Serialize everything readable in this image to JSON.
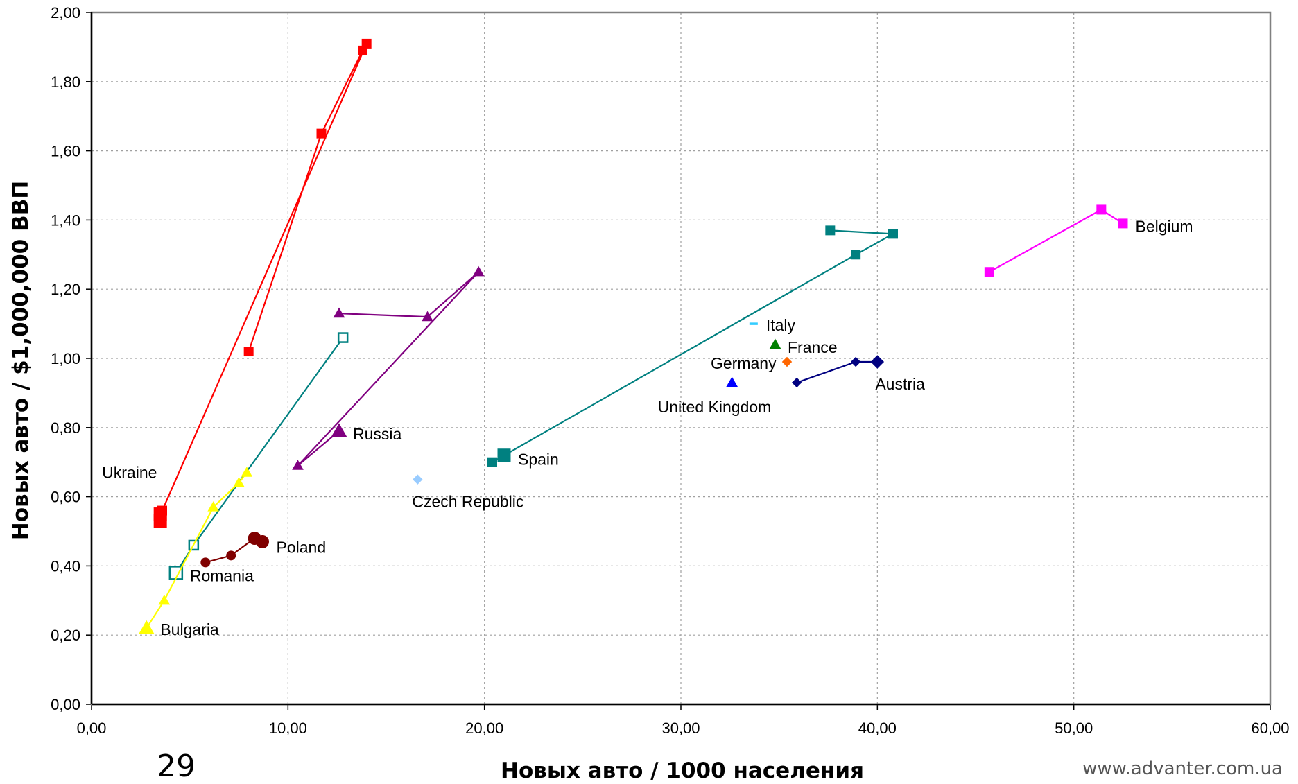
{
  "chart_data": {
    "type": "scatter",
    "title": "",
    "xlabel": "Новых авто / 1000 населения",
    "ylabel": "Новых авто / $1,000,000 ВВП",
    "xlim": [
      0,
      60
    ],
    "ylim": [
      0,
      2
    ],
    "x_ticks": [
      "0,00",
      "10,00",
      "20,00",
      "30,00",
      "40,00",
      "50,00",
      "60,00"
    ],
    "y_ticks": [
      "0,00",
      "0,20",
      "0,40",
      "0,60",
      "0,80",
      "1,00",
      "1,20",
      "1,40",
      "1,60",
      "1,80",
      "2,00"
    ],
    "grid": true,
    "series": [
      {
        "name": "Ukraine",
        "color": "#ff0000",
        "marker": "square",
        "points": [
          [
            3.5,
            0.53
          ],
          [
            3.5,
            0.55
          ],
          [
            3.6,
            0.56
          ],
          [
            14.0,
            1.91
          ],
          [
            13.8,
            1.89
          ],
          [
            11.7,
            1.65
          ],
          [
            8.0,
            1.02
          ]
        ]
      },
      {
        "name": "Romania",
        "color": "#008080",
        "marker": "open-square",
        "points": [
          [
            4.3,
            0.38
          ],
          [
            5.2,
            0.46
          ],
          [
            12.8,
            1.06
          ]
        ]
      },
      {
        "name": "Bulgaria",
        "color": "#ffff00",
        "marker": "triangle",
        "points": [
          [
            2.8,
            0.22
          ],
          [
            3.7,
            0.3
          ],
          [
            6.2,
            0.57
          ],
          [
            7.5,
            0.64
          ],
          [
            7.9,
            0.67
          ]
        ]
      },
      {
        "name": "Poland",
        "color": "#800000",
        "marker": "circle",
        "points": [
          [
            5.8,
            0.41
          ],
          [
            7.1,
            0.43
          ],
          [
            8.3,
            0.48
          ],
          [
            8.7,
            0.47
          ]
        ]
      },
      {
        "name": "Russia",
        "color": "#800080",
        "marker": "triangle",
        "points": [
          [
            12.6,
            0.79
          ],
          [
            10.5,
            0.69
          ],
          [
            19.7,
            1.25
          ],
          [
            17.1,
            1.12
          ],
          [
            12.6,
            1.13
          ]
        ]
      },
      {
        "name": "Czech Republic",
        "color": "#99ccff",
        "marker": "diamond",
        "points": [
          [
            16.6,
            0.65
          ]
        ]
      },
      {
        "name": "Spain",
        "color": "#008080",
        "marker": "square",
        "points": [
          [
            21.0,
            0.72
          ],
          [
            20.4,
            0.7
          ],
          [
            38.9,
            1.3
          ],
          [
            40.8,
            1.36
          ],
          [
            37.6,
            1.37
          ]
        ]
      },
      {
        "name": "Italy",
        "color": "#33ccff",
        "marker": "dash",
        "points": [
          [
            33.7,
            1.1
          ]
        ]
      },
      {
        "name": "France",
        "color": "#008000",
        "marker": "triangle",
        "points": [
          [
            34.8,
            1.04
          ]
        ]
      },
      {
        "name": "Germany",
        "color": "#ff6600",
        "marker": "diamond",
        "points": [
          [
            35.4,
            0.99
          ]
        ]
      },
      {
        "name": "United Kingdom",
        "color": "#0000ff",
        "marker": "triangle",
        "points": [
          [
            32.6,
            0.93
          ]
        ]
      },
      {
        "name": "Austria",
        "color": "#000080",
        "marker": "diamond",
        "points": [
          [
            35.9,
            0.93
          ],
          [
            38.9,
            0.99
          ],
          [
            40.0,
            0.99
          ]
        ]
      },
      {
        "name": "Belgium",
        "color": "#ff00ff",
        "marker": "square",
        "points": [
          [
            45.7,
            1.25
          ],
          [
            51.4,
            1.43
          ],
          [
            52.5,
            1.39
          ]
        ]
      }
    ],
    "labels": [
      {
        "text": "Ukraine",
        "series": "Ukraine",
        "x": 3.5,
        "y": 0.53
      },
      {
        "text": "Romania",
        "series": "Romania",
        "x": 4.3,
        "y": 0.38
      },
      {
        "text": "Bulgaria",
        "series": "Bulgaria",
        "x": 2.8,
        "y": 0.22
      },
      {
        "text": "Poland",
        "series": "Poland",
        "x": 8.7,
        "y": 0.47
      },
      {
        "text": "Russia",
        "series": "Russia",
        "x": 12.6,
        "y": 0.79
      },
      {
        "text": "Czech Republic",
        "series": "Czech Republic",
        "x": 16.6,
        "y": 0.65
      },
      {
        "text": "Spain",
        "series": "Spain",
        "x": 21.0,
        "y": 0.72
      },
      {
        "text": "Italy",
        "series": "Italy",
        "x": 33.7,
        "y": 1.1
      },
      {
        "text": "France",
        "series": "France",
        "x": 34.8,
        "y": 1.04
      },
      {
        "text": "Germany",
        "series": "Germany",
        "x": 35.4,
        "y": 0.99
      },
      {
        "text": "United Kingdom",
        "series": "United Kingdom",
        "x": 32.6,
        "y": 0.93
      },
      {
        "text": "Austria",
        "series": "Austria",
        "x": 40.0,
        "y": 0.99
      },
      {
        "text": "Belgium",
        "series": "Belgium",
        "x": 52.5,
        "y": 1.39
      }
    ]
  },
  "footer": {
    "page_number": "29",
    "website": "www.advanter.com.ua"
  }
}
